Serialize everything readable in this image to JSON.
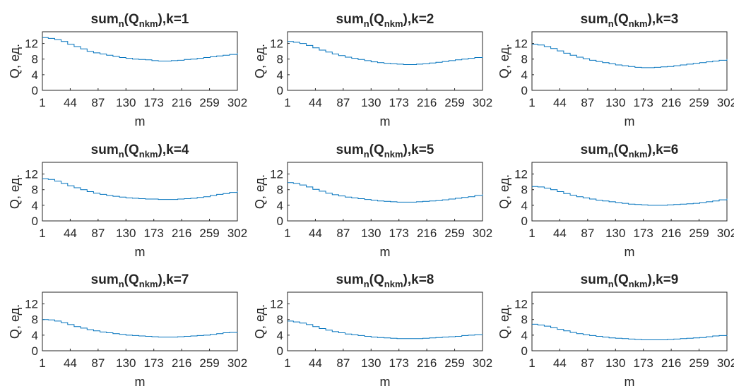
{
  "figure": {
    "colors": {
      "series": "#0072BD",
      "axes": "#262626",
      "background": "#ffffff"
    }
  },
  "chart_data": [
    {
      "type": "line",
      "k": "1",
      "title": {
        "main": "sum",
        "sub_n": "n",
        "paren_open": "(Q",
        "sub_nkm": "nkm",
        "suffix": "),k=1"
      },
      "xlabel": "m",
      "ylabel": "Q, ед.",
      "xlim": [
        1,
        302
      ],
      "ylim": [
        0,
        15
      ],
      "xticks": [
        1,
        44,
        87,
        130,
        173,
        216,
        259,
        302
      ],
      "xtick_labels": [
        "1",
        "44",
        "87",
        "130",
        "173",
        "216",
        "259",
        "302"
      ],
      "yticks": [
        0,
        4,
        8,
        12
      ],
      "ytick_labels": [
        "0",
        "4",
        "8",
        "12"
      ],
      "series": [
        {
          "x": [
            1,
            10,
            20,
            30,
            40,
            50,
            60,
            70,
            80,
            90,
            100,
            110,
            120,
            130,
            140,
            150,
            160,
            170,
            180,
            190,
            200,
            210,
            220,
            230,
            240,
            250,
            260,
            270,
            280,
            290,
            302
          ],
          "y": [
            13.5,
            13.3,
            13,
            12.5,
            11.8,
            11.2,
            10.6,
            10,
            9.6,
            9.3,
            9,
            8.7,
            8.4,
            8.2,
            8,
            7.9,
            7.8,
            7.6,
            7.5,
            7.5,
            7.6,
            7.7,
            7.9,
            8,
            8.2,
            8.4,
            8.6,
            8.8,
            9,
            9.2,
            9.5
          ]
        }
      ]
    },
    {
      "type": "line",
      "k": "2",
      "title": {
        "main": "sum",
        "sub_n": "n",
        "paren_open": "(Q",
        "sub_nkm": "nkm",
        "suffix": "),k=2"
      },
      "xlabel": "m",
      "ylabel": "Q, ед.",
      "xlim": [
        1,
        302
      ],
      "ylim": [
        0,
        15
      ],
      "xticks": [
        1,
        44,
        87,
        130,
        173,
        216,
        259,
        302
      ],
      "xtick_labels": [
        "1",
        "44",
        "87",
        "130",
        "173",
        "216",
        "259",
        "302"
      ],
      "yticks": [
        0,
        4,
        8,
        12
      ],
      "ytick_labels": [
        "0",
        "4",
        "8",
        "12"
      ],
      "series": [
        {
          "x": [
            1,
            10,
            20,
            30,
            40,
            50,
            60,
            70,
            80,
            90,
            100,
            110,
            120,
            130,
            140,
            150,
            160,
            170,
            180,
            190,
            200,
            210,
            220,
            230,
            240,
            250,
            260,
            270,
            280,
            290,
            302
          ],
          "y": [
            12.5,
            12.3,
            12,
            11.5,
            10.9,
            10.3,
            9.8,
            9.3,
            8.9,
            8.5,
            8.2,
            7.9,
            7.6,
            7.3,
            7.1,
            6.9,
            6.8,
            6.7,
            6.6,
            6.6,
            6.7,
            6.8,
            7,
            7.2,
            7.4,
            7.6,
            7.8,
            8,
            8.2,
            8.4,
            8.6
          ]
        }
      ]
    },
    {
      "type": "line",
      "k": "3",
      "title": {
        "main": "sum",
        "sub_n": "n",
        "paren_open": "(Q",
        "sub_nkm": "nkm",
        "suffix": "),k=3"
      },
      "xlabel": "m",
      "ylabel": "Q, ед.",
      "xlim": [
        1,
        302
      ],
      "ylim": [
        0,
        15
      ],
      "xticks": [
        1,
        44,
        87,
        130,
        173,
        216,
        259,
        302
      ],
      "xtick_labels": [
        "1",
        "44",
        "87",
        "130",
        "173",
        "216",
        "259",
        "302"
      ],
      "yticks": [
        0,
        4,
        8,
        12
      ],
      "ytick_labels": [
        "0",
        "4",
        "8",
        "12"
      ],
      "series": [
        {
          "x": [
            1,
            10,
            20,
            30,
            40,
            50,
            60,
            70,
            80,
            90,
            100,
            110,
            120,
            130,
            140,
            150,
            160,
            170,
            180,
            190,
            200,
            210,
            220,
            230,
            240,
            250,
            260,
            270,
            280,
            290,
            302
          ],
          "y": [
            11.8,
            11.6,
            11.2,
            10.7,
            10.1,
            9.5,
            9,
            8.5,
            8.1,
            7.7,
            7.4,
            7.1,
            6.8,
            6.5,
            6.3,
            6.1,
            5.9,
            5.8,
            5.8,
            5.9,
            6,
            6.1,
            6.3,
            6.5,
            6.7,
            6.9,
            7.1,
            7.3,
            7.5,
            7.7,
            8
          ]
        }
      ]
    },
    {
      "type": "line",
      "k": "4",
      "title": {
        "main": "sum",
        "sub_n": "n",
        "paren_open": "(Q",
        "sub_nkm": "nkm",
        "suffix": "),k=4"
      },
      "xlabel": "m",
      "ylabel": "Q, ед.",
      "xlim": [
        1,
        302
      ],
      "ylim": [
        0,
        15
      ],
      "xticks": [
        1,
        44,
        87,
        130,
        173,
        216,
        259,
        302
      ],
      "xtick_labels": [
        "1",
        "44",
        "87",
        "130",
        "173",
        "216",
        "259",
        "302"
      ],
      "yticks": [
        0,
        4,
        8,
        12
      ],
      "ytick_labels": [
        "0",
        "4",
        "8",
        "12"
      ],
      "series": [
        {
          "x": [
            1,
            10,
            20,
            30,
            40,
            50,
            60,
            70,
            80,
            90,
            100,
            110,
            120,
            130,
            140,
            150,
            160,
            170,
            180,
            190,
            200,
            210,
            220,
            230,
            240,
            250,
            260,
            270,
            280,
            290,
            302
          ],
          "y": [
            10.8,
            10.6,
            10.2,
            9.6,
            9,
            8.5,
            8,
            7.5,
            7.1,
            6.8,
            6.5,
            6.3,
            6.1,
            5.9,
            5.8,
            5.7,
            5.6,
            5.6,
            5.5,
            5.5,
            5.5,
            5.6,
            5.7,
            5.8,
            6,
            6.2,
            6.5,
            6.8,
            7,
            7.3,
            7.6
          ]
        }
      ]
    },
    {
      "type": "line",
      "k": "5",
      "title": {
        "main": "sum",
        "sub_n": "n",
        "paren_open": "(Q",
        "sub_nkm": "nkm",
        "suffix": "),k=5"
      },
      "xlabel": "m",
      "ylabel": "Q, ед.",
      "xlim": [
        1,
        302
      ],
      "ylim": [
        0,
        15
      ],
      "xticks": [
        1,
        44,
        87,
        130,
        173,
        216,
        259,
        302
      ],
      "xtick_labels": [
        "1",
        "44",
        "87",
        "130",
        "173",
        "216",
        "259",
        "302"
      ],
      "yticks": [
        0,
        4,
        8,
        12
      ],
      "ytick_labels": [
        "0",
        "4",
        "8",
        "12"
      ],
      "series": [
        {
          "x": [
            1,
            10,
            20,
            30,
            40,
            50,
            60,
            70,
            80,
            90,
            100,
            110,
            120,
            130,
            140,
            150,
            160,
            170,
            180,
            190,
            200,
            210,
            220,
            230,
            240,
            250,
            260,
            270,
            280,
            290,
            302
          ],
          "y": [
            9.8,
            9.6,
            9.2,
            8.7,
            8.1,
            7.6,
            7.1,
            6.7,
            6.4,
            6.1,
            5.9,
            5.7,
            5.5,
            5.3,
            5.1,
            5,
            4.9,
            4.8,
            4.8,
            4.8,
            4.9,
            5,
            5.1,
            5.2,
            5.4,
            5.6,
            5.8,
            6,
            6.2,
            6.5,
            6.8
          ]
        }
      ]
    },
    {
      "type": "line",
      "k": "6",
      "title": {
        "main": "sum",
        "sub_n": "n",
        "paren_open": "(Q",
        "sub_nkm": "nkm",
        "suffix": "),k=6"
      },
      "xlabel": "m",
      "ylabel": "Q, ед.",
      "xlim": [
        1,
        302
      ],
      "ylim": [
        0,
        15
      ],
      "xticks": [
        1,
        44,
        87,
        130,
        173,
        216,
        259,
        302
      ],
      "xtick_labels": [
        "1",
        "44",
        "87",
        "130",
        "173",
        "216",
        "259",
        "302"
      ],
      "yticks": [
        0,
        4,
        8,
        12
      ],
      "ytick_labels": [
        "0",
        "4",
        "8",
        "12"
      ],
      "series": [
        {
          "x": [
            1,
            10,
            20,
            30,
            40,
            50,
            60,
            70,
            80,
            90,
            100,
            110,
            120,
            130,
            140,
            150,
            160,
            170,
            180,
            190,
            200,
            210,
            220,
            230,
            240,
            250,
            260,
            270,
            280,
            290,
            302
          ],
          "y": [
            8.8,
            8.7,
            8.4,
            8,
            7.5,
            7,
            6.6,
            6.2,
            5.9,
            5.6,
            5.3,
            5.1,
            4.9,
            4.7,
            4.5,
            4.3,
            4.2,
            4.1,
            4,
            4,
            4,
            4.1,
            4.2,
            4.3,
            4.4,
            4.5,
            4.7,
            4.9,
            5.1,
            5.4,
            5.7
          ]
        }
      ]
    },
    {
      "type": "line",
      "k": "7",
      "title": {
        "main": "sum",
        "sub_n": "n",
        "paren_open": "(Q",
        "sub_nkm": "nkm",
        "suffix": "),k=7"
      },
      "xlabel": "m",
      "ylabel": "Q, ед.",
      "xlim": [
        1,
        302
      ],
      "ylim": [
        0,
        15
      ],
      "xticks": [
        1,
        44,
        87,
        130,
        173,
        216,
        259,
        302
      ],
      "xtick_labels": [
        "1",
        "44",
        "87",
        "130",
        "173",
        "216",
        "259",
        "302"
      ],
      "yticks": [
        0,
        4,
        8,
        12
      ],
      "ytick_labels": [
        "0",
        "4",
        "8",
        "12"
      ],
      "series": [
        {
          "x": [
            1,
            10,
            20,
            30,
            40,
            50,
            60,
            70,
            80,
            90,
            100,
            110,
            120,
            130,
            140,
            150,
            160,
            170,
            180,
            190,
            200,
            210,
            220,
            230,
            240,
            250,
            260,
            270,
            280,
            290,
            302
          ],
          "y": [
            8,
            7.9,
            7.6,
            7.2,
            6.7,
            6.2,
            5.8,
            5.4,
            5.1,
            4.8,
            4.6,
            4.4,
            4.2,
            4,
            3.9,
            3.8,
            3.7,
            3.6,
            3.5,
            3.5,
            3.5,
            3.6,
            3.7,
            3.8,
            3.9,
            4,
            4.2,
            4.4,
            4.6,
            4.7,
            4.8
          ]
        }
      ]
    },
    {
      "type": "line",
      "k": "8",
      "title": {
        "main": "sum",
        "sub_n": "n",
        "paren_open": "(Q",
        "sub_nkm": "nkm",
        "suffix": "),k=8"
      },
      "xlabel": "m",
      "ylabel": "Q, ед.",
      "xlim": [
        1,
        302
      ],
      "ylim": [
        0,
        15
      ],
      "xticks": [
        1,
        44,
        87,
        130,
        173,
        216,
        259,
        302
      ],
      "xtick_labels": [
        "1",
        "44",
        "87",
        "130",
        "173",
        "216",
        "259",
        "302"
      ],
      "yticks": [
        0,
        4,
        8,
        12
      ],
      "ytick_labels": [
        "0",
        "4",
        "8",
        "12"
      ],
      "series": [
        {
          "x": [
            1,
            10,
            20,
            30,
            40,
            50,
            60,
            70,
            80,
            90,
            100,
            110,
            120,
            130,
            140,
            150,
            160,
            170,
            180,
            190,
            200,
            210,
            220,
            230,
            240,
            250,
            260,
            270,
            280,
            290,
            302
          ],
          "y": [
            7.6,
            7.4,
            7.1,
            6.7,
            6.2,
            5.7,
            5.3,
            4.9,
            4.6,
            4.3,
            4.1,
            3.9,
            3.7,
            3.5,
            3.4,
            3.3,
            3.2,
            3.1,
            3.1,
            3.1,
            3.1,
            3.2,
            3.3,
            3.4,
            3.5,
            3.6,
            3.7,
            3.9,
            4,
            4.1,
            4.2
          ]
        }
      ]
    },
    {
      "type": "line",
      "k": "9",
      "title": {
        "main": "sum",
        "sub_n": "n",
        "paren_open": "(Q",
        "sub_nkm": "nkm",
        "suffix": "),k=9"
      },
      "xlabel": "m",
      "ylabel": "Q, ед.",
      "xlim": [
        1,
        302
      ],
      "ylim": [
        0,
        15
      ],
      "xticks": [
        1,
        44,
        87,
        130,
        173,
        216,
        259,
        302
      ],
      "xtick_labels": [
        "1",
        "44",
        "87",
        "130",
        "173",
        "216",
        "259",
        "302"
      ],
      "yticks": [
        0,
        4,
        8,
        12
      ],
      "ytick_labels": [
        "0",
        "4",
        "8",
        "12"
      ],
      "series": [
        {
          "x": [
            1,
            10,
            20,
            30,
            40,
            50,
            60,
            70,
            80,
            90,
            100,
            110,
            120,
            130,
            140,
            150,
            160,
            170,
            180,
            190,
            200,
            210,
            220,
            230,
            240,
            250,
            260,
            270,
            280,
            290,
            302
          ],
          "y": [
            6.8,
            6.6,
            6.3,
            5.9,
            5.5,
            5.1,
            4.7,
            4.4,
            4.1,
            3.9,
            3.7,
            3.5,
            3.3,
            3.2,
            3.1,
            3,
            2.9,
            2.8,
            2.8,
            2.8,
            2.8,
            2.9,
            3,
            3.1,
            3.2,
            3.3,
            3.4,
            3.6,
            3.8,
            3.9,
            4
          ]
        }
      ]
    }
  ]
}
